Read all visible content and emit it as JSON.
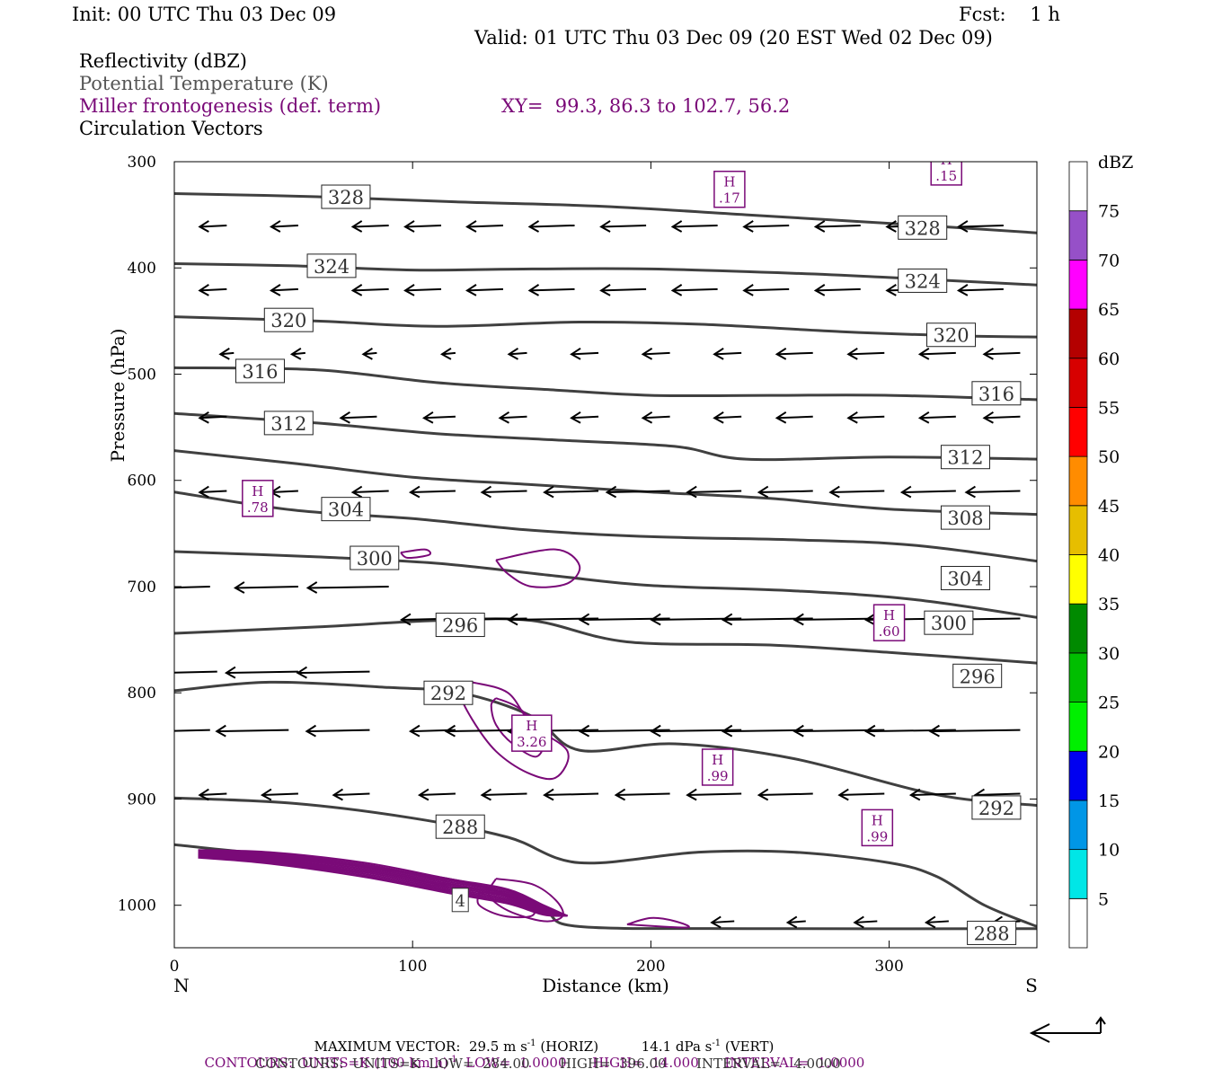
{
  "header": {
    "init": "Init: 00 UTC Thu 03 Dec 09",
    "fcst": "Fcst:    1 h",
    "valid": "Valid: 01 UTC Thu 03 Dec 09 (20 EST Wed 02 Dec 09)"
  },
  "legend": {
    "reflectivity": "Reflectivity (dBZ)",
    "theta": "Potential Temperature (K)",
    "frontogenesis": "Miller frontogenesis (def. term)",
    "xy": "XY=  99.3, 86.3 to 102.7, 56.2",
    "vectors": "Circulation Vectors"
  },
  "colors": {
    "theta_line": "#404040",
    "frontogenesis": "#7a0a78",
    "vector": "#000000"
  },
  "chart_data": {
    "type": "cross-section",
    "xlabel": "Distance (km)",
    "ylabel": "Pressure (hPa)",
    "xlim": [
      0,
      362
    ],
    "ylim": [
      1040,
      300
    ],
    "x_ticks": [
      0,
      100,
      200,
      300
    ],
    "y_ticks": [
      300,
      400,
      500,
      600,
      700,
      800,
      900,
      1000
    ],
    "left_end_label": "N",
    "right_end_label": "S",
    "colorbar": {
      "title": "dBZ",
      "levels": [
        "5",
        "10",
        "15",
        "20",
        "25",
        "30",
        "35",
        "40",
        "45",
        "50",
        "55",
        "60",
        "65",
        "70",
        "75"
      ],
      "colors": [
        "#ffffff",
        "#00e6e6",
        "#0096e6",
        "#0000f0",
        "#00f000",
        "#00be00",
        "#008a00",
        "#ffff00",
        "#e6be00",
        "#ff8c00",
        "#ff0000",
        "#d70000",
        "#b40000",
        "#ff00ff",
        "#9650c8",
        "#ffffff"
      ]
    },
    "theta_contours": [
      {
        "label": "328",
        "points": [
          [
            0,
            330
          ],
          [
            60,
            333
          ],
          [
            120,
            338
          ],
          [
            180,
            342
          ],
          [
            240,
            350
          ],
          [
            300,
            358
          ],
          [
            362,
            367
          ]
        ],
        "labels_at": [
          [
            72,
            333
          ],
          [
            314,
            362
          ]
        ]
      },
      {
        "label": "324",
        "points": [
          [
            0,
            396
          ],
          [
            50,
            398
          ],
          [
            100,
            402
          ],
          [
            150,
            401
          ],
          [
            200,
            401
          ],
          [
            260,
            405
          ],
          [
            300,
            409
          ],
          [
            362,
            416
          ]
        ],
        "labels_at": [
          [
            66,
            398
          ],
          [
            314,
            412
          ]
        ]
      },
      {
        "label": "320",
        "points": [
          [
            0,
            446
          ],
          [
            60,
            450
          ],
          [
            110,
            455
          ],
          [
            170,
            451
          ],
          [
            220,
            453
          ],
          [
            280,
            460
          ],
          [
            330,
            464
          ],
          [
            362,
            465
          ]
        ],
        "labels_at": [
          [
            48,
            449
          ],
          [
            326,
            463
          ]
        ]
      },
      {
        "label": "316",
        "points": [
          [
            0,
            494
          ],
          [
            60,
            496
          ],
          [
            110,
            508
          ],
          [
            160,
            515
          ],
          [
            200,
            520
          ],
          [
            250,
            520
          ],
          [
            300,
            520
          ],
          [
            362,
            524
          ]
        ],
        "labels_at": [
          [
            36,
            497
          ],
          [
            345,
            518
          ]
        ]
      },
      {
        "label": "312",
        "points": [
          [
            0,
            537
          ],
          [
            60,
            546
          ],
          [
            110,
            556
          ],
          [
            160,
            562
          ],
          [
            210,
            568
          ],
          [
            240,
            580
          ],
          [
            300,
            578
          ],
          [
            362,
            580
          ]
        ],
        "labels_at": [
          [
            48,
            546
          ],
          [
            332,
            578
          ]
        ]
      },
      {
        "label": "308",
        "points": [
          [
            0,
            572
          ],
          [
            50,
            584
          ],
          [
            100,
            597
          ],
          [
            150,
            604
          ],
          [
            200,
            611
          ],
          [
            250,
            617
          ],
          [
            300,
            627
          ],
          [
            362,
            632
          ]
        ],
        "labels_at": [
          [
            332,
            635
          ]
        ]
      },
      {
        "label": "304",
        "points": [
          [
            0,
            611
          ],
          [
            50,
            628
          ],
          [
            100,
            636
          ],
          [
            150,
            647
          ],
          [
            200,
            653
          ],
          [
            260,
            656
          ],
          [
            310,
            661
          ],
          [
            362,
            676
          ]
        ],
        "labels_at": [
          [
            72,
            627
          ],
          [
            332,
            692
          ]
        ]
      },
      {
        "label": "300",
        "points": [
          [
            0,
            667
          ],
          [
            60,
            672
          ],
          [
            110,
            678
          ],
          [
            160,
            690
          ],
          [
            200,
            699
          ],
          [
            260,
            704
          ],
          [
            310,
            712
          ],
          [
            362,
            729
          ]
        ],
        "labels_at": [
          [
            84,
            673
          ],
          [
            325,
            734
          ]
        ]
      },
      {
        "label": "296",
        "points": [
          [
            0,
            744
          ],
          [
            60,
            738
          ],
          [
            110,
            732
          ],
          [
            150,
            732
          ],
          [
            190,
            752
          ],
          [
            250,
            755
          ],
          [
            300,
            762
          ],
          [
            362,
            772
          ]
        ],
        "labels_at": [
          [
            120,
            736
          ],
          [
            337,
            784
          ]
        ]
      },
      {
        "label": "292",
        "points": [
          [
            0,
            798
          ],
          [
            40,
            790
          ],
          [
            90,
            795
          ],
          [
            120,
            800
          ],
          [
            150,
            822
          ],
          [
            170,
            854
          ],
          [
            210,
            848
          ],
          [
            260,
            862
          ],
          [
            320,
            896
          ],
          [
            362,
            906
          ]
        ],
        "labels_at": [
          [
            115,
            800
          ],
          [
            345,
            908
          ]
        ]
      },
      {
        "label": "288",
        "points": [
          [
            0,
            899
          ],
          [
            50,
            904
          ],
          [
            100,
            918
          ],
          [
            140,
            936
          ],
          [
            170,
            960
          ],
          [
            220,
            950
          ],
          [
            260,
            950
          ],
          [
            300,
            960
          ],
          [
            320,
            973
          ],
          [
            340,
            1000
          ],
          [
            362,
            1020
          ]
        ],
        "labels_at": [
          [
            120,
            926
          ],
          [
            343,
            1026
          ]
        ]
      },
      {
        "label": "284",
        "points": [
          [
            0,
            943
          ],
          [
            50,
            955
          ],
          [
            100,
            970
          ],
          [
            130,
            983
          ],
          [
            155,
            1005
          ],
          [
            170,
            1020
          ],
          [
            240,
            1022
          ],
          [
            362,
            1022
          ]
        ],
        "labels_at": []
      }
    ],
    "frontogenesis_labels": [
      {
        "kind": "H",
        "value": ".17",
        "x": 233,
        "p": 326
      },
      {
        "kind": "H",
        "value": ".15",
        "x": 324,
        "p": 305
      },
      {
        "kind": "H",
        "value": ".78",
        "x": 35,
        "p": 617
      },
      {
        "kind": "H",
        "value": ".60",
        "x": 300,
        "p": 734
      },
      {
        "kind": "H",
        "value": "3.26",
        "x": 150,
        "p": 838
      },
      {
        "kind": "H",
        "value": ".99",
        "x": 228,
        "p": 870
      },
      {
        "kind": "H",
        "value": ".99",
        "x": 295,
        "p": 927
      }
    ],
    "frontogenesis_min_label": "4",
    "vector_rows": [
      {
        "p": 360,
        "x": [
          22,
          52,
          90,
          112,
          138,
          168,
          198,
          228,
          258,
          288,
          318,
          348
        ],
        "u": [
          -0.3,
          -0.3,
          -0.4,
          -0.4,
          -0.4,
          -0.5,
          -0.5,
          -0.5,
          -0.5,
          -0.5,
          -0.5,
          -0.5
        ]
      },
      {
        "p": 420,
        "x": [
          22,
          52,
          90,
          112,
          138,
          168,
          198,
          228,
          258,
          288,
          318,
          348
        ],
        "u": [
          -0.3,
          -0.3,
          -0.4,
          -0.4,
          -0.4,
          -0.5,
          -0.5,
          -0.5,
          -0.5,
          -0.5,
          -0.5,
          -0.5
        ]
      },
      {
        "p": 480,
        "x": [
          25,
          55,
          85,
          118,
          148,
          178,
          208,
          238,
          268,
          298,
          328,
          355
        ],
        "u": [
          -0.15,
          -0.15,
          -0.15,
          -0.15,
          -0.2,
          -0.3,
          -0.3,
          -0.3,
          -0.4,
          -0.4,
          -0.4,
          -0.4
        ]
      },
      {
        "p": 540,
        "x": [
          22,
          52,
          85,
          118,
          148,
          178,
          208,
          238,
          268,
          298,
          328,
          355
        ],
        "u": [
          -0.3,
          -0.3,
          -0.4,
          -0.35,
          -0.3,
          -0.3,
          -0.3,
          -0.3,
          -0.4,
          -0.4,
          -0.4,
          -0.4
        ]
      },
      {
        "p": 610,
        "x": [
          22,
          52,
          90,
          118,
          148,
          178,
          208,
          238,
          268,
          298,
          328,
          355
        ],
        "u": [
          -0.3,
          -0.3,
          -0.4,
          -0.5,
          -0.5,
          -0.6,
          -0.7,
          -0.6,
          -0.6,
          -0.6,
          -0.6,
          -0.6
        ]
      },
      {
        "p": 700,
        "x": [
          15,
          52,
          90
        ],
        "u": [
          -0.5,
          -0.7,
          -0.9
        ]
      },
      {
        "p": 730,
        "x": [
          118,
          148,
          178,
          208,
          238,
          268,
          298,
          328,
          355
        ],
        "u": [
          -0.6,
          -0.9,
          -1.0,
          -1.0,
          -1.0,
          -1.0,
          -1.0,
          -1.0,
          -1.0
        ]
      },
      {
        "p": 780,
        "x": [
          18,
          52,
          82
        ],
        "u": [
          -0.6,
          -0.8,
          -0.8
        ]
      },
      {
        "p": 835,
        "x": [
          15,
          48,
          82,
          118,
          148,
          178,
          208,
          238,
          268,
          298,
          328,
          355
        ],
        "u": [
          -0.6,
          -0.8,
          -0.7,
          -0.5,
          -0.9,
          -1.0,
          -1.0,
          -1.0,
          -1.0,
          -1.0,
          -1.0,
          -1.0
        ]
      },
      {
        "p": 895,
        "x": [
          22,
          52,
          82,
          118,
          148,
          178,
          208,
          238,
          268,
          298,
          328,
          355
        ],
        "u": [
          -0.3,
          -0.4,
          -0.4,
          -0.4,
          -0.5,
          -0.6,
          -0.6,
          -0.6,
          -0.6,
          -0.5,
          -0.5,
          -0.5
        ]
      },
      {
        "p": 1015,
        "x": [
          235,
          265,
          295,
          325,
          355
        ],
        "u": [
          -0.25,
          -0.2,
          -0.25,
          -0.25,
          -0.3
        ]
      }
    ]
  },
  "footer": {
    "max_vector_prefix": "MAXIMUM VECTOR:",
    "max_vector_horiz": "29.5 m s",
    "max_vector_horiz_unit": "(HORIZ)",
    "max_vector_vert": "14.1 dPa s",
    "max_vector_vert_unit": "(VERT)",
    "exp": "-1",
    "contours_fg": "CONTOURS:  UNITS=K (100 km h)",
    "contours_fg_rest": "LOW=  1.0000      HIGH=  14.000      INTERVAL=  1.0000",
    "contours_theta": "CONTOURS:  UNITS=K  LOW=  284.00       HIGH=  396.00       INTERVAL=   4.0000"
  }
}
